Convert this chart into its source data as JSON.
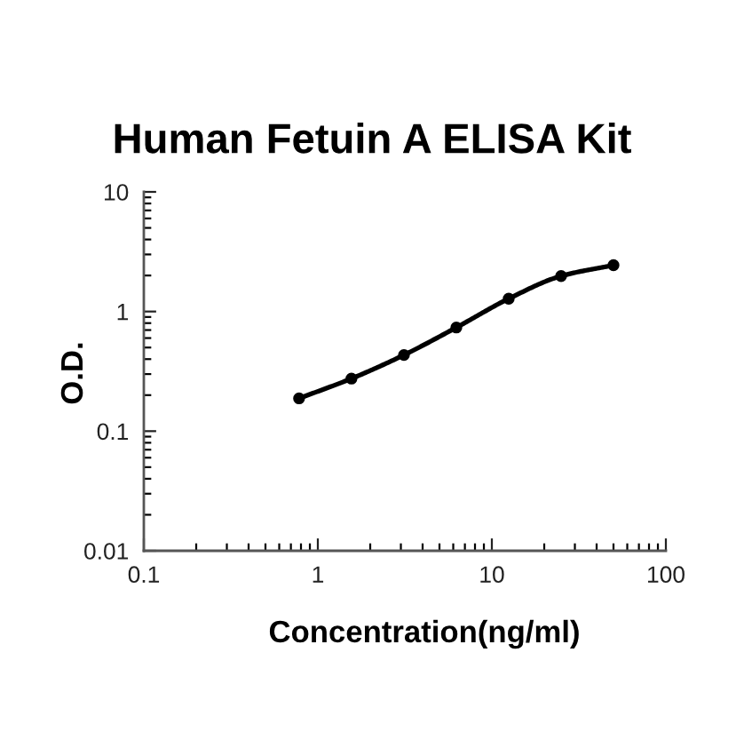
{
  "chart_data": {
    "type": "line",
    "title": "Human Fetuin A ELISA Kit",
    "xlabel": "Concentration(ng/ml)",
    "ylabel": "O.D.",
    "x": [
      0.78,
      1.56,
      3.125,
      6.25,
      12.5,
      25,
      50
    ],
    "series": [
      {
        "color": "#000000",
        "values": [
          0.188,
          0.275,
          0.433,
          0.735,
          1.28,
          1.98,
          2.44
        ]
      }
    ],
    "xlim": [
      0.1,
      100
    ],
    "ylim": [
      0.01,
      10
    ],
    "xticks": [
      0.1,
      1,
      10,
      100
    ],
    "yticks": [
      0.01,
      0.1,
      1,
      10
    ],
    "log": "xy",
    "grid": false,
    "marker": "circle",
    "line_style": "solid"
  }
}
